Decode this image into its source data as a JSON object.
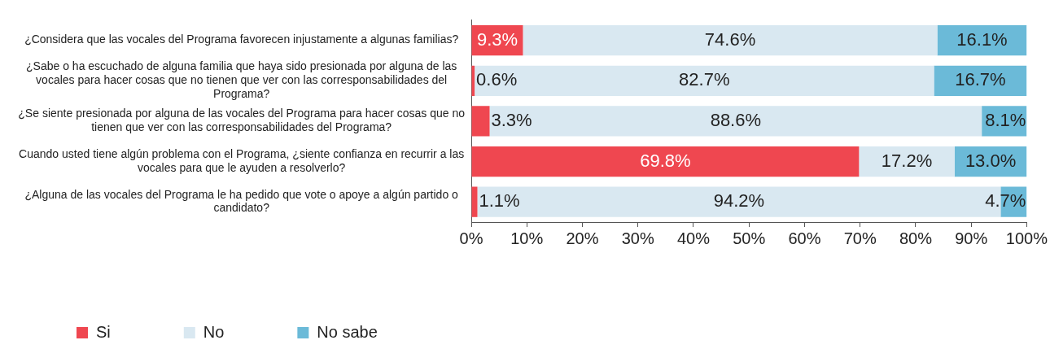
{
  "chart_data": {
    "type": "bar",
    "orientation": "horizontal",
    "stacked": true,
    "categories": [
      "¿Considera que las vocales del Programa favorecen injustamente a algunas familias?",
      "¿Sabe o ha escuchado de alguna familia que haya sido presionada por alguna de las vocales para hacer cosas que no tienen que ver con las corresponsabilidades del Programa?",
      "¿Se siente presionada por alguna de las vocales del Programa para hacer cosas que no tienen que ver con las corresponsabilidades del Programa?",
      "Cuando usted tiene algún problema con el Programa, ¿siente confianza en recurrir a las vocales para que le ayuden a resolverlo?",
      "¿Alguna de las vocales del Programa le ha pedido que vote o apoye a algún partido o candidato?"
    ],
    "series": [
      {
        "name": "Si",
        "color": "#ef4750",
        "values": [
          9.3,
          0.6,
          3.3,
          69.8,
          1.1
        ],
        "value_labels": [
          "9.3%",
          "0.6%",
          "3.3%",
          "69.8%",
          "1.1%"
        ]
      },
      {
        "name": "No",
        "color": "#d9e8f1",
        "values": [
          74.6,
          82.7,
          88.6,
          17.2,
          94.2
        ],
        "value_labels": [
          "74.6%",
          "82.7%",
          "88.6%",
          "17.2%",
          "94.2%"
        ]
      },
      {
        "name": "No sabe",
        "color": "#6bbad8",
        "values": [
          16.1,
          16.7,
          8.1,
          13.0,
          4.7
        ],
        "value_labels": [
          "16.1%",
          "16.7%",
          "8.1%",
          "13.0%",
          "4.7%"
        ]
      }
    ],
    "xlim": [
      0,
      100
    ],
    "xticks": [
      {
        "value": 0,
        "label": "0%"
      },
      {
        "value": 10,
        "label": "10%"
      },
      {
        "value": 20,
        "label": "20%"
      },
      {
        "value": 30,
        "label": "30%"
      },
      {
        "value": 40,
        "label": "40%"
      },
      {
        "value": 50,
        "label": "50%"
      },
      {
        "value": 60,
        "label": "60%"
      },
      {
        "value": 70,
        "label": "70%"
      },
      {
        "value": 80,
        "label": "80%"
      },
      {
        "value": 90,
        "label": "90%"
      },
      {
        "value": 100,
        "label": "100%"
      }
    ],
    "grid": false,
    "legend": "bottom left"
  }
}
